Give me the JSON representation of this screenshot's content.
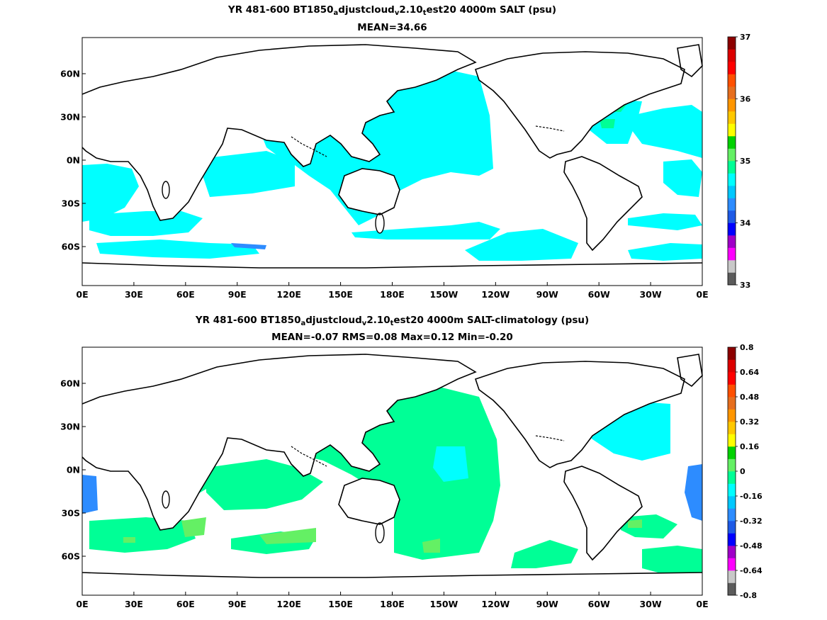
{
  "panels": [
    {
      "title_parts": [
        "YR 481-600 BT1850",
        "a",
        "djustcloud",
        "v",
        "2.10",
        "t",
        "est20 4000m SALT (psu)"
      ],
      "stats": "MEAN=34.66",
      "colorbar": {
        "labels": [
          "33",
          "34",
          "35",
          "36",
          "37"
        ],
        "colors": [
          "#5b5b5b",
          "#c8c8c8",
          "#ff00ff",
          "#a000c8",
          "#0000ff",
          "#1e5ae6",
          "#2d8cff",
          "#00c8ff",
          "#00ffff",
          "#00ff96",
          "#64f064",
          "#00d200",
          "#ffff00",
          "#ffc800",
          "#ff9600",
          "#e66e1e",
          "#ff5000",
          "#ff0000",
          "#dc0000",
          "#8c0000"
        ]
      }
    },
    {
      "title_parts": [
        "YR 481-600 BT1850",
        "a",
        "djustcloud",
        "v",
        "2.10",
        "t",
        "est20 4000m SALT-climatology (psu)"
      ],
      "stats": "MEAN=-0.07   RMS=0.08   Max=0.12   Min=-0.20",
      "colorbar": {
        "labels": [
          "0.8",
          "0.64",
          "0.48",
          "0.32",
          "0.16",
          "0",
          "-0.16",
          "-0.32",
          "-0.48",
          "-0.64",
          "-0.8"
        ],
        "colors": [
          "#5b5b5b",
          "#c8c8c8",
          "#ff00ff",
          "#a000c8",
          "#0000ff",
          "#1e5ae6",
          "#2d8cff",
          "#00c8ff",
          "#00ffff",
          "#00ff96",
          "#64f064",
          "#00d200",
          "#ffff00",
          "#ffc800",
          "#ff9600",
          "#e66e1e",
          "#ff5000",
          "#ff0000",
          "#dc0000",
          "#8c0000"
        ]
      }
    }
  ],
  "axes": {
    "lon_ticks": [
      "0E",
      "30E",
      "60E",
      "90E",
      "120E",
      "150E",
      "180E",
      "150W",
      "120W",
      "90W",
      "60W",
      "30W",
      "0E"
    ],
    "lat_ticks": [
      "60N",
      "30N",
      "0N",
      "30S",
      "60S"
    ]
  }
}
